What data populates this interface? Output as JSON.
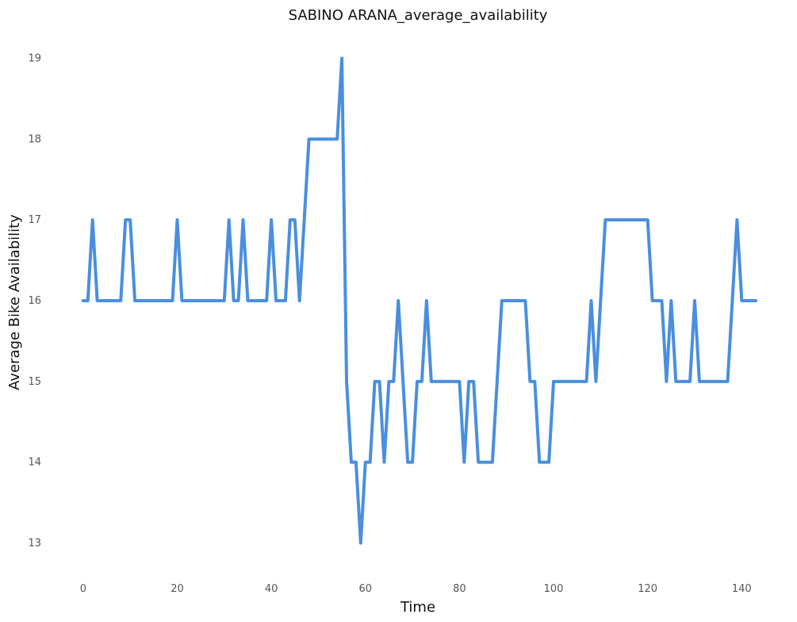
{
  "chart_data": {
    "type": "line",
    "title": "SABINO ARANA_average_availability",
    "xlabel": "Time",
    "ylabel": "Average Bike Availability",
    "xlim": [
      -2.5,
      144.5
    ],
    "ylim": [
      12.7,
      19.3
    ],
    "xticks": [
      0,
      20,
      40,
      60,
      80,
      100,
      120,
      140
    ],
    "yticks": [
      13,
      14,
      15,
      16,
      17,
      18,
      19
    ],
    "grid": false,
    "line_color": "#4a8fdf",
    "series": [
      {
        "x": [
          0,
          1,
          2,
          3,
          4,
          5,
          6,
          7,
          8,
          9,
          10,
          11,
          12,
          13,
          14,
          15,
          16,
          17,
          18,
          19,
          20,
          21,
          22,
          23,
          24,
          25,
          26,
          27,
          28,
          29,
          30,
          31,
          32,
          33,
          34,
          35,
          36,
          37,
          38,
          39,
          40,
          41,
          42,
          43,
          44,
          45,
          46,
          47,
          48,
          49,
          50,
          51,
          52,
          53,
          54,
          55,
          56,
          57,
          58,
          59,
          60,
          61,
          62,
          63,
          64,
          65,
          66,
          67,
          68,
          69,
          70,
          71,
          72,
          73,
          74,
          75,
          76,
          77,
          78,
          79,
          80,
          81,
          82,
          83,
          84,
          85,
          86,
          87,
          88,
          89,
          90,
          91,
          92,
          93,
          94,
          95,
          96,
          97,
          98,
          99,
          100,
          101,
          102,
          103,
          104,
          105,
          106,
          107,
          108,
          109,
          110,
          111,
          112,
          113,
          114,
          115,
          116,
          117,
          118,
          119,
          120,
          121,
          122,
          123,
          124,
          125,
          126,
          127,
          128,
          129,
          130,
          131,
          132,
          133,
          134,
          135,
          136,
          137,
          138,
          139,
          140,
          141,
          142,
          143
        ],
        "values": [
          16,
          16,
          17,
          16,
          16,
          16,
          16,
          16,
          16,
          17,
          17,
          16,
          16,
          16,
          16,
          16,
          16,
          16,
          16,
          16,
          17,
          16,
          16,
          16,
          16,
          16,
          16,
          16,
          16,
          16,
          16,
          17,
          16,
          16,
          17,
          16,
          16,
          16,
          16,
          16,
          17,
          16,
          16,
          16,
          17,
          17,
          16,
          17,
          18,
          18,
          18,
          18,
          18,
          18,
          18,
          19,
          15,
          14,
          14,
          13,
          14,
          14,
          15,
          15,
          14,
          15,
          15,
          16,
          15,
          14,
          14,
          15,
          15,
          16,
          15,
          15,
          15,
          15,
          15,
          15,
          15,
          14,
          15,
          15,
          14,
          14,
          14,
          14,
          15,
          16,
          16,
          16,
          16,
          16,
          16,
          15,
          15,
          14,
          14,
          14,
          15,
          15,
          15,
          15,
          15,
          15,
          15,
          15,
          16,
          15,
          16,
          17,
          17,
          17,
          17,
          17,
          17,
          17,
          17,
          17,
          17,
          16,
          16,
          16,
          15,
          16,
          15,
          15,
          15,
          15,
          16,
          15,
          15,
          15,
          15,
          15,
          15,
          15,
          16,
          17,
          16,
          16,
          16,
          16
        ]
      }
    ]
  }
}
